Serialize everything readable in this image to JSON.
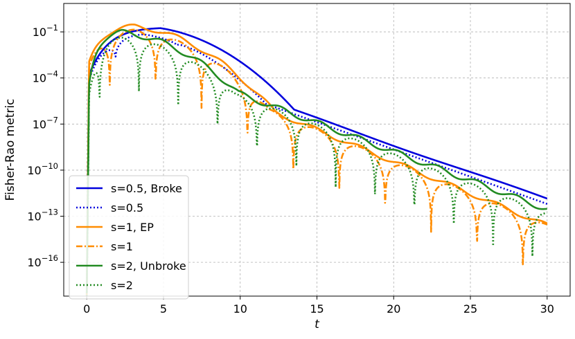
{
  "chart_data": {
    "type": "line",
    "title": "",
    "xlabel": "t",
    "ylabel": "Fisher-Rao metric",
    "xlim": [
      -1.5,
      31.5
    ],
    "ylog_lim": [
      -18.2,
      0.85
    ],
    "yscale": "log",
    "xticks": [
      0,
      5,
      10,
      15,
      20,
      25,
      30
    ],
    "xtick_labels": [
      "0",
      "5",
      "10",
      "15",
      "20",
      "25",
      "30"
    ],
    "yticks": [
      -16,
      -13,
      -10,
      -7,
      -4,
      -1
    ],
    "ytick_labels": [
      "10",
      "10",
      "10",
      "10",
      "10",
      "10"
    ],
    "ytick_exponents": [
      "−16",
      "−13",
      "−10",
      "−7",
      "−4",
      "−1"
    ],
    "grid": true,
    "legend_position": "lower-left",
    "series": [
      {
        "name": "s=0.5, Broke",
        "color": "#0000dd",
        "style": "solid",
        "a": -1.38,
        "b": 0.35,
        "peak": [
          3.6,
          -0.65
        ],
        "rise": 6,
        "amp": 0.05,
        "freq": 0.45,
        "phase": 0,
        "mode": "ripple"
      },
      {
        "name": "s=0.5",
        "color": "#0000dd",
        "style": "dotted",
        "a": -1.55,
        "b": 0.355,
        "peak": [
          2.6,
          -1.1
        ],
        "rise": 6,
        "amp": 0.7,
        "freq": 1.57,
        "phase": 0.2,
        "mode": "dipfade"
      },
      {
        "name": "s=1, EP",
        "color": "#ff8c00",
        "style": "solid",
        "a": -1.15,
        "b": 0.415,
        "peak": [
          2.2,
          -0.6
        ],
        "rise": 5,
        "amp": 0.15,
        "freq": 2.1,
        "phase": 0.3,
        "mode": "ripple"
      },
      {
        "name": "s=1",
        "color": "#ff8c00",
        "style": "dashdot",
        "a": -1.1,
        "b": 0.415,
        "peak": [
          2.2,
          -0.8
        ],
        "rise": 5,
        "amp": 3.6,
        "freq": 2.1,
        "phase": 0.0,
        "mode": "dip"
      },
      {
        "name": "s=2, Unbroke",
        "color": "#228b22",
        "style": "solid",
        "a": -1.3,
        "b": 0.375,
        "peak": [
          1.4,
          -1.0
        ],
        "rise": 8,
        "amp": 0.18,
        "freq": 2.45,
        "phase": 0.5,
        "mode": "ripple"
      },
      {
        "name": "s=2",
        "color": "#228b22",
        "style": "dotted",
        "a": -1.35,
        "b": 0.38,
        "peak": [
          1.5,
          -1.3
        ],
        "rise": 8,
        "amp": 4.0,
        "freq": 2.45,
        "phase": 1.1,
        "mode": "dip"
      }
    ]
  }
}
